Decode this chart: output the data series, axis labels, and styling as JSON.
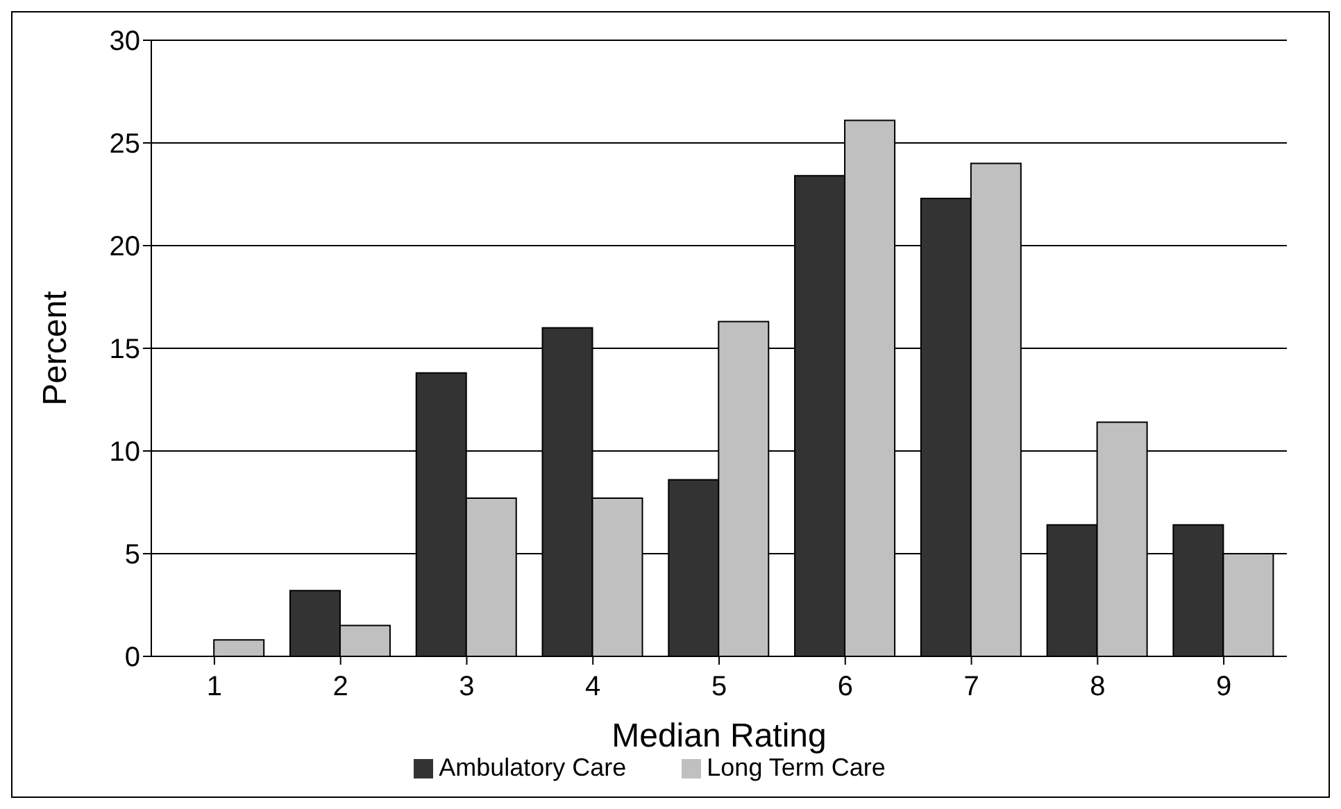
{
  "chart_data": {
    "type": "bar",
    "xlabel": "Median Rating",
    "ylabel": "Percent",
    "categories": [
      "1",
      "2",
      "3",
      "4",
      "5",
      "6",
      "7",
      "8",
      "9"
    ],
    "series": [
      {
        "name": "Ambulatory Care",
        "color": "#333333",
        "values": [
          0,
          3.2,
          13.8,
          16.0,
          8.6,
          23.4,
          22.3,
          6.4,
          6.4
        ]
      },
      {
        "name": "Long Term Care",
        "color": "#c0c0c0",
        "values": [
          0.8,
          1.5,
          7.7,
          7.7,
          16.3,
          26.1,
          24.0,
          11.4,
          5.0
        ]
      }
    ],
    "ylim": [
      0,
      30
    ],
    "yticks": [
      0,
      5,
      10,
      15,
      20,
      25,
      30
    ],
    "grid": "y",
    "legend": "bottom"
  }
}
